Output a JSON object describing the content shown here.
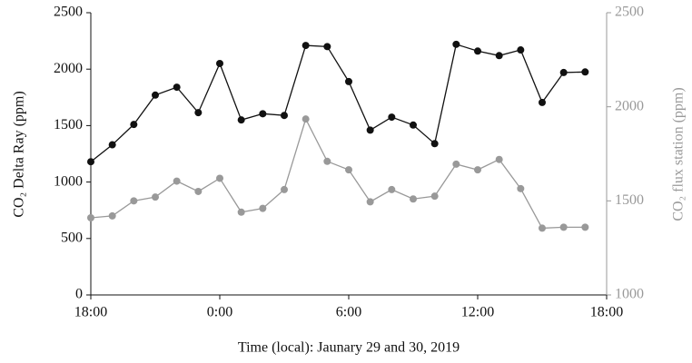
{
  "chart_data": {
    "type": "line",
    "x_label": "Time (local): Jaunary 29 and 30, 2019",
    "y_label": "CO₂ Delta Ray (ppm)",
    "y2_label": "CO₂ flux station (ppm)",
    "x": [
      0,
      1,
      2,
      3,
      4,
      5,
      6,
      7,
      8,
      9,
      10,
      11,
      12,
      13,
      14,
      15,
      16,
      17,
      18,
      19,
      20,
      21,
      22,
      23
    ],
    "xlim": [
      0,
      24
    ],
    "xticks": [
      {
        "value": 0,
        "label": "18:00"
      },
      {
        "value": 6,
        "label": "0:00"
      },
      {
        "value": 12,
        "label": "6:00"
      },
      {
        "value": 18,
        "label": "12:00"
      },
      {
        "value": 24,
        "label": "18:00"
      }
    ],
    "ylim": [
      0,
      2500
    ],
    "yticks": [
      0,
      500,
      1000,
      1500,
      2000,
      2500
    ],
    "y2lim": [
      1000,
      2500
    ],
    "y2ticks": [
      1000,
      1500,
      2000,
      2500
    ],
    "series": [
      {
        "name": "CO₂ Delta Ray",
        "color": "#111111",
        "values": [
          1180,
          1330,
          1510,
          1770,
          1840,
          1615,
          2050,
          1550,
          1605,
          1590,
          2210,
          2200,
          1890,
          1460,
          1575,
          1505,
          1340,
          2220,
          2160,
          2120,
          2170,
          1705,
          1970,
          1975
        ]
      },
      {
        "name": "CO₂ flux station",
        "color": "#999999",
        "axis": "y2",
        "values": [
          1410,
          1420,
          1500,
          1520,
          1605,
          1550,
          1620,
          1440,
          1460,
          1560,
          1935,
          1710,
          1665,
          1495,
          1560,
          1510,
          1525,
          1695,
          1665,
          1720,
          1565,
          1355,
          1360,
          1360
        ]
      }
    ]
  }
}
